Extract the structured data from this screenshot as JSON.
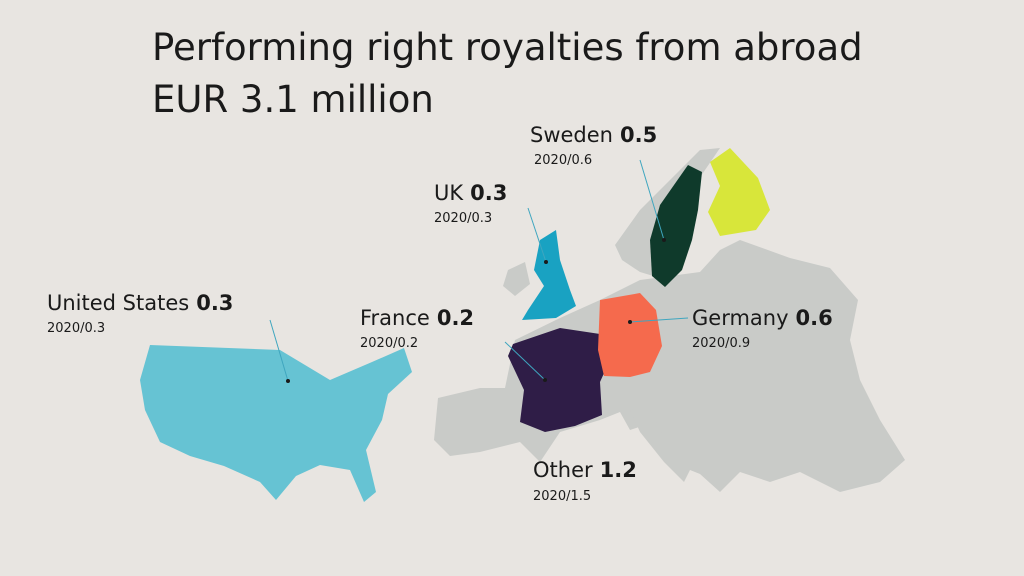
{
  "header": {
    "title": "Performing right royalties from abroad",
    "subtitle": "EUR 3.1 million"
  },
  "regions": [
    {
      "name": "Sweden",
      "value": 0.5,
      "previous": "2020/0.6"
    },
    {
      "name": "UK",
      "value": 0.3,
      "previous": "2020/0.3"
    },
    {
      "name": "United States",
      "value": 0.3,
      "previous": "2020/0.3"
    },
    {
      "name": "France",
      "value": 0.2,
      "previous": "2020/0.2"
    },
    {
      "name": "Germany",
      "value": 0.6,
      "previous": "2020/0.9"
    },
    {
      "name": "Other",
      "value": 1.2,
      "previous": "2020/1.5"
    }
  ]
}
